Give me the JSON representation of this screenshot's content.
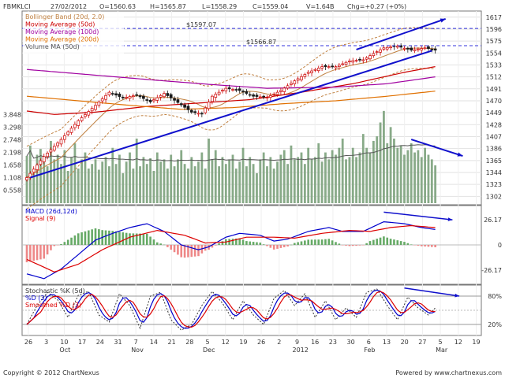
{
  "header": {
    "symbol": "FBMKLCI",
    "date": "27/02/2012",
    "open": "O=1560.63",
    "high": "H=1565.87",
    "low": "L=1558.29",
    "close": "C=1559.04",
    "volume": "V=1.64B",
    "change": "Chg=+0.27 (+0%)"
  },
  "footer": {
    "copyright": "Copyright © 2012 ChartNexus",
    "powered": "Powered by www.chartnexus.com"
  },
  "colors": {
    "up": "#cc0000",
    "down": "#1a1a1a",
    "bollinger": "#c08040",
    "ma50": "#cc0000",
    "ma100": "#a000a0",
    "ma200": "#e07000",
    "volume_ma": "#555555",
    "volume_bars": "#88aa88",
    "trend": "#1010cc",
    "macd": "#0000cc",
    "signal": "#dd0000",
    "stoch_k": "#333333",
    "stoch_d": "#0000cc",
    "stoch_smoothed": "#dd0000",
    "macd_hist_pos": "#66aa66",
    "macd_hist_neg": "#ee8888",
    "ref_line": "#3333dd"
  },
  "chart_data": [
    {
      "type": "line",
      "panel": "price",
      "title": "FBMKLCI",
      "legend": [
        {
          "name": "Bollinger Band (20d, 2.0)",
          "color": "#c08040"
        },
        {
          "name": "Moving Average (50d)",
          "color": "#cc0000"
        },
        {
          "name": "Moving Average (100d)",
          "color": "#a000a0"
        },
        {
          "name": "Moving Average (200d)",
          "color": "#e07000"
        },
        {
          "name": "Volume MA (50d)",
          "color": "#555555"
        }
      ],
      "reference_lines": [
        {
          "value": 1597.07,
          "label": "$1597.07"
        },
        {
          "value": 1566.87,
          "label": "$1566.87"
        }
      ],
      "y_ticks": [
        1302,
        1323,
        1344,
        1365,
        1386,
        1407,
        1428,
        1449,
        1470,
        1491,
        1512,
        1533,
        1554,
        1575,
        1596,
        1617
      ],
      "ylim": [
        1290,
        1625
      ],
      "volume_ticks": [
        "0.558",
        "1.108",
        "1.658",
        "2.198",
        "2.748",
        "3.298",
        "3.848"
      ],
      "volume_ylim": [
        0,
        4.2
      ],
      "x_ticks": [
        "26",
        "3",
        "10",
        "17",
        "24",
        "31",
        "7",
        "14",
        "21",
        "28",
        "5",
        "12",
        "19",
        "26",
        "2",
        "9",
        "16",
        "23",
        "30",
        "6",
        "13",
        "20",
        "27",
        "5",
        "12",
        "19"
      ],
      "x_months": [
        "Oct",
        "Nov",
        "Dec",
        "2012",
        "Feb",
        "Mar"
      ],
      "trend_lines": [
        {
          "from": {
            "i": 1,
            "v": 1335
          },
          "to": {
            "i": 118,
            "v": 1558
          }
        },
        {
          "from": {
            "i": 96,
            "v": 1560
          },
          "to": {
            "i": 122,
            "v": 1614
          }
        },
        {
          "from": {
            "i": 112,
            "v": 1402
          },
          "to": {
            "i": 127,
            "v": 1373
          }
        }
      ],
      "anchors": [
        {
          "i": 0,
          "v": 1335
        },
        {
          "i": 5,
          "v": 1372
        },
        {
          "i": 10,
          "v": 1402
        },
        {
          "i": 15,
          "v": 1435
        },
        {
          "i": 20,
          "v": 1462
        },
        {
          "i": 24,
          "v": 1485
        },
        {
          "i": 28,
          "v": 1475
        },
        {
          "i": 32,
          "v": 1480
        },
        {
          "i": 36,
          "v": 1468
        },
        {
          "i": 40,
          "v": 1483
        },
        {
          "i": 44,
          "v": 1467
        },
        {
          "i": 48,
          "v": 1450
        },
        {
          "i": 51,
          "v": 1447
        },
        {
          "i": 54,
          "v": 1478
        },
        {
          "i": 58,
          "v": 1492
        },
        {
          "i": 62,
          "v": 1488
        },
        {
          "i": 66,
          "v": 1478
        },
        {
          "i": 70,
          "v": 1476
        },
        {
          "i": 74,
          "v": 1488
        },
        {
          "i": 78,
          "v": 1505
        },
        {
          "i": 82,
          "v": 1520
        },
        {
          "i": 86,
          "v": 1530
        },
        {
          "i": 90,
          "v": 1530
        },
        {
          "i": 94,
          "v": 1540
        },
        {
          "i": 98,
          "v": 1542
        },
        {
          "i": 101,
          "v": 1553
        },
        {
          "i": 104,
          "v": 1563
        },
        {
          "i": 108,
          "v": 1566
        },
        {
          "i": 112,
          "v": 1559
        },
        {
          "i": 116,
          "v": 1563
        },
        {
          "i": 119,
          "v": 1559
        }
      ],
      "bb_width": [
        {
          "i": 0,
          "v": 55
        },
        {
          "i": 20,
          "v": 45
        },
        {
          "i": 40,
          "v": 30
        },
        {
          "i": 55,
          "v": 40
        },
        {
          "i": 70,
          "v": 25
        },
        {
          "i": 90,
          "v": 40
        },
        {
          "i": 119,
          "v": 35
        }
      ],
      "ma": {
        "ma50": [
          {
            "i": 0,
            "v": 1452
          },
          {
            "i": 8,
            "v": 1446
          },
          {
            "i": 20,
            "v": 1450
          },
          {
            "i": 35,
            "v": 1460
          },
          {
            "i": 50,
            "v": 1466
          },
          {
            "i": 65,
            "v": 1472
          },
          {
            "i": 80,
            "v": 1485
          },
          {
            "i": 95,
            "v": 1500
          },
          {
            "i": 110,
            "v": 1520
          },
          {
            "i": 119,
            "v": 1530
          }
        ],
        "ma100": [
          {
            "i": 0,
            "v": 1525
          },
          {
            "i": 20,
            "v": 1515
          },
          {
            "i": 40,
            "v": 1505
          },
          {
            "i": 55,
            "v": 1498
          },
          {
            "i": 70,
            "v": 1492
          },
          {
            "i": 90,
            "v": 1494
          },
          {
            "i": 105,
            "v": 1500
          },
          {
            "i": 119,
            "v": 1512
          }
        ],
        "ma200": [
          {
            "i": 0,
            "v": 1478
          },
          {
            "i": 15,
            "v": 1470
          },
          {
            "i": 30,
            "v": 1462
          },
          {
            "i": 45,
            "v": 1455
          },
          {
            "i": 60,
            "v": 1458
          },
          {
            "i": 75,
            "v": 1465
          },
          {
            "i": 90,
            "v": 1470
          },
          {
            "i": 105,
            "v": 1478
          },
          {
            "i": 119,
            "v": 1487
          }
        ]
      }
    },
    {
      "type": "line",
      "panel": "macd",
      "legend": [
        {
          "name": "MACD (26d,12d)",
          "color": "#0000cc"
        },
        {
          "name": "Signal (9)",
          "color": "#dd0000"
        }
      ],
      "y_ticks": [
        26.17,
        0,
        -26.17
      ],
      "ylim": [
        -40,
        40
      ],
      "trend_line": {
        "from": {
          "i": 104,
          "v": 34
        },
        "to": {
          "i": 124,
          "v": 26
        }
      },
      "macd_anchors": [
        {
          "i": 0,
          "v": -30
        },
        {
          "i": 5,
          "v": -35
        },
        {
          "i": 10,
          "v": -25
        },
        {
          "i": 15,
          "v": -10
        },
        {
          "i": 20,
          "v": 5
        },
        {
          "i": 25,
          "v": 12
        },
        {
          "i": 30,
          "v": 18
        },
        {
          "i": 35,
          "v": 22
        },
        {
          "i": 40,
          "v": 14
        },
        {
          "i": 45,
          "v": 0
        },
        {
          "i": 50,
          "v": -5
        },
        {
          "i": 53,
          "v": -2
        },
        {
          "i": 58,
          "v": 8
        },
        {
          "i": 62,
          "v": 12
        },
        {
          "i": 68,
          "v": 10
        },
        {
          "i": 72,
          "v": 4
        },
        {
          "i": 76,
          "v": 6
        },
        {
          "i": 82,
          "v": 14
        },
        {
          "i": 88,
          "v": 18
        },
        {
          "i": 92,
          "v": 14
        },
        {
          "i": 98,
          "v": 14
        },
        {
          "i": 104,
          "v": 24
        },
        {
          "i": 110,
          "v": 22
        },
        {
          "i": 115,
          "v": 18
        },
        {
          "i": 119,
          "v": 16
        }
      ],
      "signal_anchors": [
        {
          "i": 0,
          "v": -15
        },
        {
          "i": 8,
          "v": -28
        },
        {
          "i": 15,
          "v": -20
        },
        {
          "i": 22,
          "v": -5
        },
        {
          "i": 30,
          "v": 8
        },
        {
          "i": 38,
          "v": 15
        },
        {
          "i": 46,
          "v": 10
        },
        {
          "i": 52,
          "v": 2
        },
        {
          "i": 58,
          "v": 3
        },
        {
          "i": 64,
          "v": 8
        },
        {
          "i": 72,
          "v": 8
        },
        {
          "i": 78,
          "v": 7
        },
        {
          "i": 86,
          "v": 12
        },
        {
          "i": 94,
          "v": 15
        },
        {
          "i": 100,
          "v": 14
        },
        {
          "i": 106,
          "v": 18
        },
        {
          "i": 112,
          "v": 20
        },
        {
          "i": 119,
          "v": 18
        }
      ]
    },
    {
      "type": "line",
      "panel": "stochastic",
      "legend": [
        {
          "name": "Stochastic %K (5d)",
          "color": "#333333"
        },
        {
          "name": "%D (3)",
          "color": "#0000cc"
        },
        {
          "name": "Smoothed %D (3)",
          "color": "#dd0000"
        }
      ],
      "y_ticks": [
        "80%",
        "20%"
      ],
      "levels": [
        80,
        50,
        20
      ],
      "ylim": [
        0,
        100
      ],
      "trend_line": {
        "from": {
          "i": 110,
          "v": 97
        },
        "to": {
          "i": 126,
          "v": 80
        }
      },
      "k_anchors": [
        {
          "i": 0,
          "v": 20
        },
        {
          "i": 3,
          "v": 60
        },
        {
          "i": 6,
          "v": 88
        },
        {
          "i": 9,
          "v": 72
        },
        {
          "i": 12,
          "v": 35
        },
        {
          "i": 15,
          "v": 82
        },
        {
          "i": 18,
          "v": 90
        },
        {
          "i": 21,
          "v": 40
        },
        {
          "i": 24,
          "v": 25
        },
        {
          "i": 27,
          "v": 85
        },
        {
          "i": 30,
          "v": 60
        },
        {
          "i": 33,
          "v": 12
        },
        {
          "i": 36,
          "v": 80
        },
        {
          "i": 39,
          "v": 88
        },
        {
          "i": 42,
          "v": 30
        },
        {
          "i": 45,
          "v": 8
        },
        {
          "i": 48,
          "v": 20
        },
        {
          "i": 51,
          "v": 60
        },
        {
          "i": 54,
          "v": 90
        },
        {
          "i": 57,
          "v": 65
        },
        {
          "i": 60,
          "v": 30
        },
        {
          "i": 63,
          "v": 70
        },
        {
          "i": 66,
          "v": 40
        },
        {
          "i": 69,
          "v": 20
        },
        {
          "i": 72,
          "v": 75
        },
        {
          "i": 75,
          "v": 92
        },
        {
          "i": 78,
          "v": 60
        },
        {
          "i": 81,
          "v": 85
        },
        {
          "i": 84,
          "v": 35
        },
        {
          "i": 87,
          "v": 70
        },
        {
          "i": 90,
          "v": 30
        },
        {
          "i": 93,
          "v": 55
        },
        {
          "i": 96,
          "v": 35
        },
        {
          "i": 99,
          "v": 88
        },
        {
          "i": 102,
          "v": 95
        },
        {
          "i": 105,
          "v": 60
        },
        {
          "i": 108,
          "v": 30
        },
        {
          "i": 111,
          "v": 78
        },
        {
          "i": 114,
          "v": 55
        },
        {
          "i": 117,
          "v": 40
        },
        {
          "i": 119,
          "v": 55
        }
      ],
      "d_lag": 2,
      "sd_lag": 4
    }
  ],
  "volume": [
    2.05,
    2.5,
    1.3,
    2.1,
    2.35,
    1.8,
    1.6,
    2.7,
    1.9,
    2.1,
    1.7,
    2.3,
    1.4,
    2.0,
    2.6,
    1.5,
    1.9,
    2.2,
    1.5,
    1.7,
    1.9,
    1.45,
    1.8,
    2.0,
    1.6,
    2.4,
    1.7,
    2.1,
    1.3,
    1.8,
    2.2,
    1.5,
    2.8,
    1.6,
    2.0,
    1.7,
    1.95,
    1.4,
    2.2,
    1.8,
    1.9,
    1.5,
    2.1,
    1.6,
    1.9,
    2.3,
    1.7,
    1.5,
    2.0,
    1.6,
    1.8,
    2.2,
    1.5,
    2.8,
    1.9,
    2.3,
    1.6,
    2.0,
    1.7,
    1.9,
    2.1,
    1.5,
    1.8,
    2.4,
    1.6,
    2.0,
    1.7,
    1.3,
    1.9,
    2.2,
    1.6,
    2.0,
    1.5,
    1.8,
    2.1,
    2.3,
    1.7,
    2.5,
    1.9,
    2.0,
    2.2,
    1.7,
    2.4,
    1.9,
    2.0,
    2.6,
    1.8,
    2.2,
    1.9,
    2.3,
    2.1,
    2.4,
    2.8,
    1.9,
    2.0,
    2.4,
    2.0,
    2.2,
    3.0,
    2.4,
    2.2,
    2.7,
    2.9,
    3.5,
    4.0,
    2.6,
    3.3,
    2.8,
    2.4,
    2.5,
    2.1,
    2.3,
    2.6,
    2.2,
    2.3,
    2.0,
    2.4,
    2.1,
    1.9,
    1.64
  ]
}
